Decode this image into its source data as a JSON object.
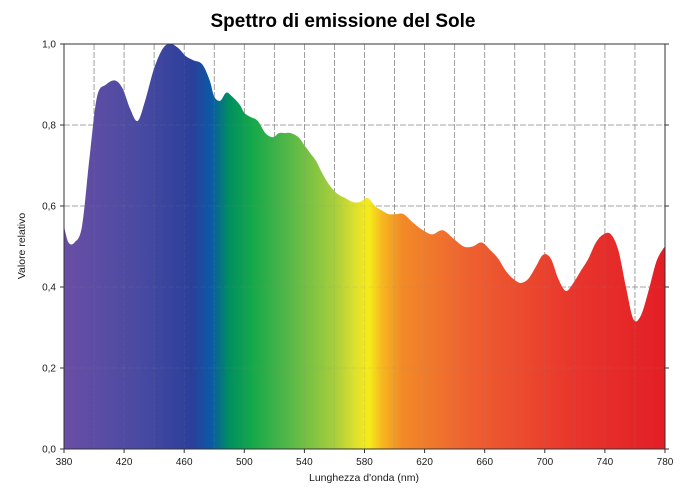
{
  "chart_data": {
    "type": "area",
    "title": "Spettro di emissione del Sole",
    "xlabel": "Lunghezza d'onda (nm)",
    "ylabel": "Valore relativo",
    "xlim": [
      380,
      780
    ],
    "ylim": [
      0,
      1.0
    ],
    "grid": true,
    "x_ticks": [
      380,
      420,
      460,
      500,
      540,
      580,
      620,
      660,
      700,
      740,
      780
    ],
    "x_tick_labels": [
      "380",
      "420",
      "460",
      "500",
      "540",
      "580",
      "620",
      "660",
      "700",
      "740",
      "780"
    ],
    "y_ticks": [
      0,
      0.2,
      0.4,
      0.6,
      0.8,
      1.0
    ],
    "y_tick_labels": [
      "0,0",
      "0,2",
      "0,4",
      "0,6",
      "0,8",
      "1,0"
    ],
    "series": [
      {
        "x": [
          380,
          383,
          387,
          392,
          397,
          402,
          408,
          414,
          419,
          424,
          429,
          434,
          440,
          446,
          451,
          456,
          461,
          466,
          472,
          477,
          480,
          484,
          488,
          492,
          497,
          500,
          504,
          509,
          514,
          519,
          523,
          527,
          531,
          536,
          540,
          544,
          548,
          552,
          557,
          562,
          567,
          572,
          577,
          582,
          587,
          591,
          596,
          601,
          606,
          612,
          619,
          625,
          632,
          639,
          646,
          652,
          658,
          664,
          669,
          674,
          679,
          684,
          689,
          694,
          699,
          704,
          709,
          714,
          719,
          724,
          729,
          734,
          739,
          744,
          749,
          754,
          759,
          764,
          769,
          774,
          778,
          780
        ],
        "y": [
          0.55,
          0.51,
          0.51,
          0.55,
          0.72,
          0.87,
          0.9,
          0.91,
          0.89,
          0.84,
          0.81,
          0.86,
          0.94,
          0.99,
          1.0,
          0.99,
          0.97,
          0.96,
          0.95,
          0.91,
          0.87,
          0.86,
          0.88,
          0.87,
          0.85,
          0.83,
          0.82,
          0.81,
          0.78,
          0.77,
          0.78,
          0.78,
          0.78,
          0.77,
          0.75,
          0.73,
          0.71,
          0.68,
          0.65,
          0.63,
          0.62,
          0.61,
          0.61,
          0.62,
          0.6,
          0.59,
          0.58,
          0.58,
          0.58,
          0.56,
          0.54,
          0.53,
          0.54,
          0.52,
          0.5,
          0.5,
          0.51,
          0.49,
          0.47,
          0.44,
          0.42,
          0.41,
          0.42,
          0.45,
          0.48,
          0.47,
          0.42,
          0.39,
          0.41,
          0.44,
          0.47,
          0.51,
          0.53,
          0.53,
          0.49,
          0.4,
          0.32,
          0.33,
          0.39,
          0.46,
          0.49,
          0.5
        ]
      }
    ],
    "fill_gradient": [
      {
        "nm": 380,
        "color": "#6a4ea5"
      },
      {
        "nm": 430,
        "color": "#4a4aa2"
      },
      {
        "nm": 465,
        "color": "#2b3f9a"
      },
      {
        "nm": 478,
        "color": "#0a5aa6"
      },
      {
        "nm": 490,
        "color": "#008f60"
      },
      {
        "nm": 505,
        "color": "#14a84a"
      },
      {
        "nm": 530,
        "color": "#56b848"
      },
      {
        "nm": 560,
        "color": "#a8ce3c"
      },
      {
        "nm": 575,
        "color": "#e2e22c"
      },
      {
        "nm": 583,
        "color": "#f7ec1a"
      },
      {
        "nm": 592,
        "color": "#f6b620"
      },
      {
        "nm": 605,
        "color": "#f28a28"
      },
      {
        "nm": 650,
        "color": "#ee6030"
      },
      {
        "nm": 720,
        "color": "#e8352c"
      },
      {
        "nm": 780,
        "color": "#e31e26"
      }
    ]
  }
}
